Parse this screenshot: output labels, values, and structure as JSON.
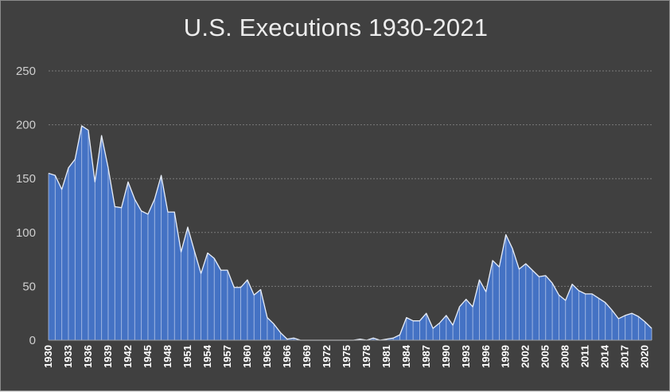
{
  "chart_data": {
    "type": "area",
    "title": "U.S. Executions 1930-2021",
    "xlabel": "",
    "ylabel": "",
    "ylim": [
      0,
      250
    ],
    "yticks": [
      0,
      50,
      100,
      150,
      200,
      250
    ],
    "grid": true,
    "legend": "none",
    "colors": {
      "background": "#404040",
      "fill": "#4472c4",
      "line": "#e8eef8",
      "grid": "#7a7a7a",
      "axis_text": "#cfcfcf",
      "xtick_text": "#ffffff"
    },
    "x": [
      1930,
      1931,
      1932,
      1933,
      1934,
      1935,
      1936,
      1937,
      1938,
      1939,
      1940,
      1941,
      1942,
      1943,
      1944,
      1945,
      1946,
      1947,
      1948,
      1949,
      1950,
      1951,
      1952,
      1953,
      1954,
      1955,
      1956,
      1957,
      1958,
      1959,
      1960,
      1961,
      1962,
      1963,
      1964,
      1965,
      1966,
      1967,
      1968,
      1969,
      1970,
      1971,
      1972,
      1973,
      1974,
      1975,
      1976,
      1977,
      1978,
      1979,
      1980,
      1981,
      1982,
      1983,
      1984,
      1985,
      1986,
      1987,
      1988,
      1989,
      1990,
      1991,
      1992,
      1993,
      1994,
      1995,
      1996,
      1997,
      1998,
      1999,
      2000,
      2001,
      2002,
      2003,
      2004,
      2005,
      2006,
      2007,
      2008,
      2009,
      2010,
      2011,
      2012,
      2013,
      2014,
      2015,
      2016,
      2017,
      2018,
      2019,
      2020,
      2021
    ],
    "values": [
      155,
      153,
      140,
      160,
      168,
      199,
      195,
      147,
      190,
      160,
      124,
      123,
      147,
      131,
      120,
      117,
      131,
      153,
      119,
      119,
      82,
      105,
      83,
      62,
      81,
      76,
      65,
      65,
      49,
      49,
      56,
      42,
      47,
      21,
      15,
      7,
      1,
      2,
      0,
      0,
      0,
      0,
      0,
      0,
      0,
      0,
      0,
      1,
      0,
      2,
      0,
      1,
      2,
      5,
      21,
      18,
      18,
      25,
      11,
      16,
      23,
      14,
      31,
      38,
      31,
      56,
      45,
      74,
      68,
      98,
      85,
      66,
      71,
      65,
      59,
      60,
      53,
      42,
      37,
      52,
      46,
      43,
      43,
      39,
      35,
      28,
      20,
      23,
      25,
      22,
      17,
      11
    ],
    "xtick_labels": [
      "1930",
      "1933",
      "1936",
      "1939",
      "1942",
      "1945",
      "1948",
      "1951",
      "1954",
      "1957",
      "1960",
      "1963",
      "1966",
      "1969",
      "1972",
      "1975",
      "1978",
      "1981",
      "1984",
      "1987",
      "1990",
      "1993",
      "1996",
      "1999",
      "2002",
      "2005",
      "2008",
      "2011",
      "2014",
      "2017",
      "2020"
    ]
  }
}
